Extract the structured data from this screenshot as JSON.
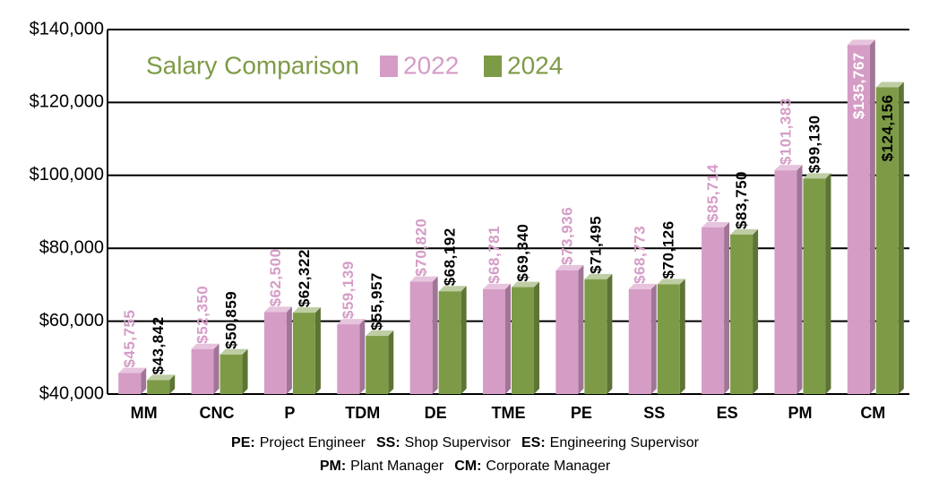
{
  "chart_data": {
    "type": "bar",
    "title": "Salary Comparison",
    "categories": [
      "MM",
      "CNC",
      "P",
      "TDM",
      "DE",
      "TME",
      "PE",
      "SS",
      "ES",
      "PM",
      "CM"
    ],
    "series": [
      {
        "name": "2022",
        "color": "#d59cc6",
        "values": [
          45755,
          52350,
          62500,
          59139,
          70820,
          68781,
          73936,
          68773,
          85714,
          101383,
          135767
        ],
        "value_labels": [
          "$45,755",
          "$52,350",
          "$62,500",
          "$59,139",
          "$70,820",
          "$68,781",
          "$73,936",
          "$68,773",
          "$85,714",
          "$101,383",
          "$135,767"
        ]
      },
      {
        "name": "2024",
        "color": "#7d9b47",
        "values": [
          43842,
          50859,
          62322,
          55957,
          68192,
          69340,
          71495,
          70126,
          83750,
          99130,
          124156
        ],
        "value_labels": [
          "$43,842",
          "$50,859",
          "$62,322",
          "$55,957",
          "$68,192",
          "$69,340",
          "$71,495",
          "$70,126",
          "$83,750",
          "$99,130",
          "$124,156"
        ]
      }
    ],
    "ylim": [
      40000,
      140000
    ],
    "yticks": [
      {
        "value": 40000,
        "label": "$40,000"
      },
      {
        "value": 60000,
        "label": "$60,000"
      },
      {
        "value": 80000,
        "label": "$80,000"
      },
      {
        "value": 100000,
        "label": "$100,000"
      },
      {
        "value": 120000,
        "label": "$120,000"
      },
      {
        "value": 140000,
        "label": "$140,000"
      }
    ],
    "grid": true,
    "notes": [
      [
        {
          "abbr": "PE:",
          "text": "Project Engineer"
        },
        {
          "abbr": "SS:",
          "text": "Shop Supervisor"
        },
        {
          "abbr": "ES:",
          "text": "Engineering Supervisor"
        }
      ],
      [
        {
          "abbr": "PM:",
          "text": "Plant Manager"
        },
        {
          "abbr": "CM:",
          "text": "Corporate Manager"
        }
      ]
    ]
  }
}
